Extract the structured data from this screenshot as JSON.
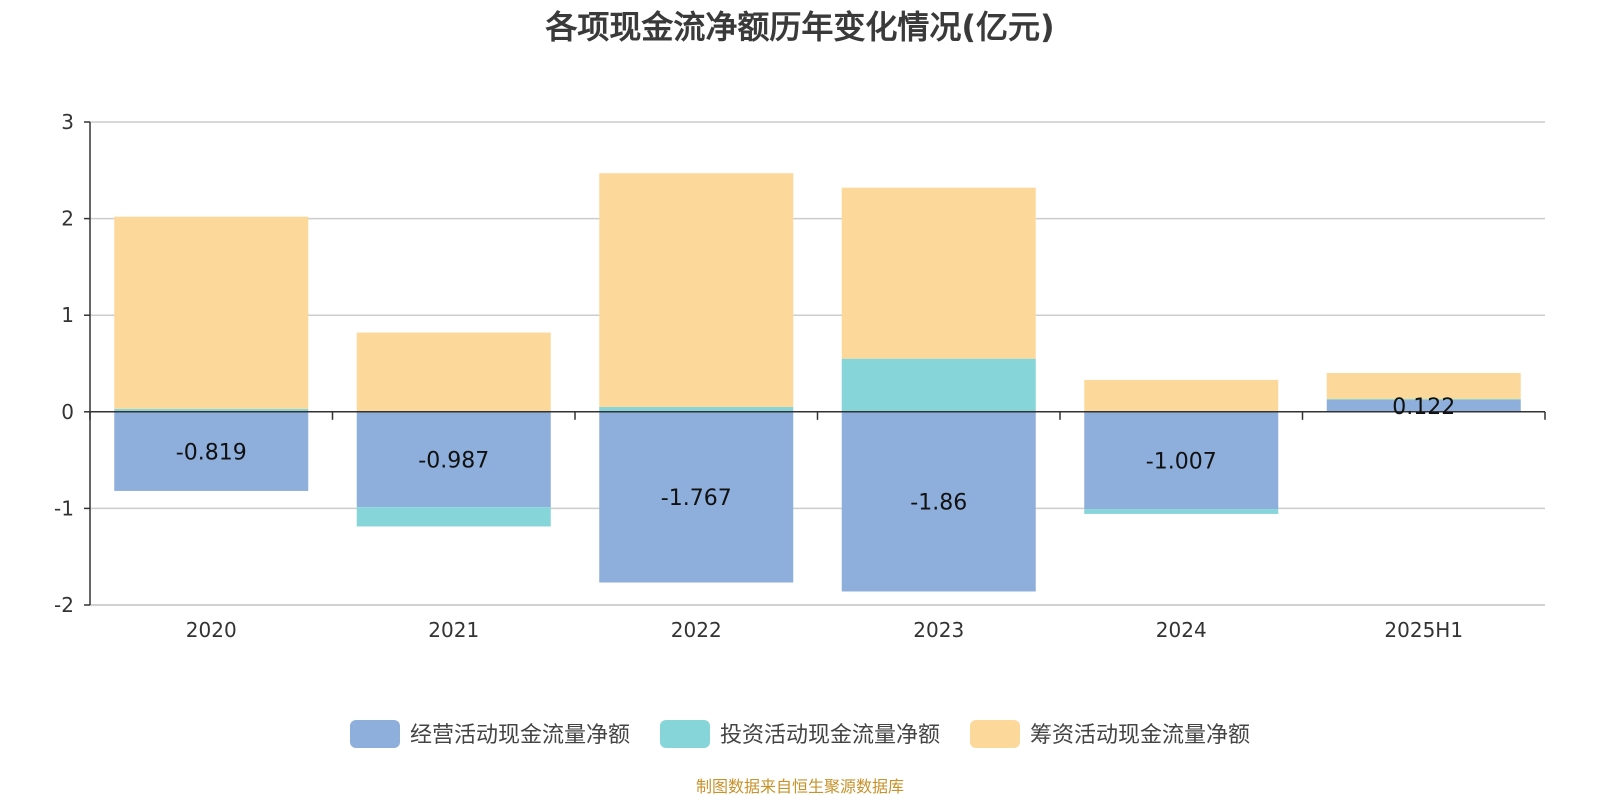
{
  "chart_data": {
    "type": "bar",
    "stacked": true,
    "title": "各项现金流净额历年变化情况(亿元)",
    "categories": [
      "2020",
      "2021",
      "2022",
      "2023",
      "2024",
      "2025H1"
    ],
    "ylim": [
      -2,
      3
    ],
    "yticks": [
      3,
      2,
      1,
      0,
      -1,
      -2
    ],
    "grid": true,
    "legend_position": "bottom",
    "series": [
      {
        "name": "经营活动现金流量净额",
        "color": "#8eaedb",
        "values": [
          -0.819,
          -0.987,
          -1.767,
          -1.86,
          -1.007,
          0.122
        ],
        "labels": [
          "-0.819",
          "-0.987",
          "-1.767",
          "-1.86",
          "-1.007",
          "0.122"
        ]
      },
      {
        "name": "投资活动现金流量净额",
        "color": "#86d5d8",
        "values": [
          0.03,
          -0.2,
          0.05,
          0.55,
          -0.05,
          0.01
        ]
      },
      {
        "name": "筹资活动现金流量净额",
        "color": "#fdd89b",
        "values": [
          1.99,
          0.82,
          2.42,
          1.77,
          0.33,
          0.27
        ]
      }
    ],
    "source": "制图数据来自恒生聚源数据库"
  }
}
